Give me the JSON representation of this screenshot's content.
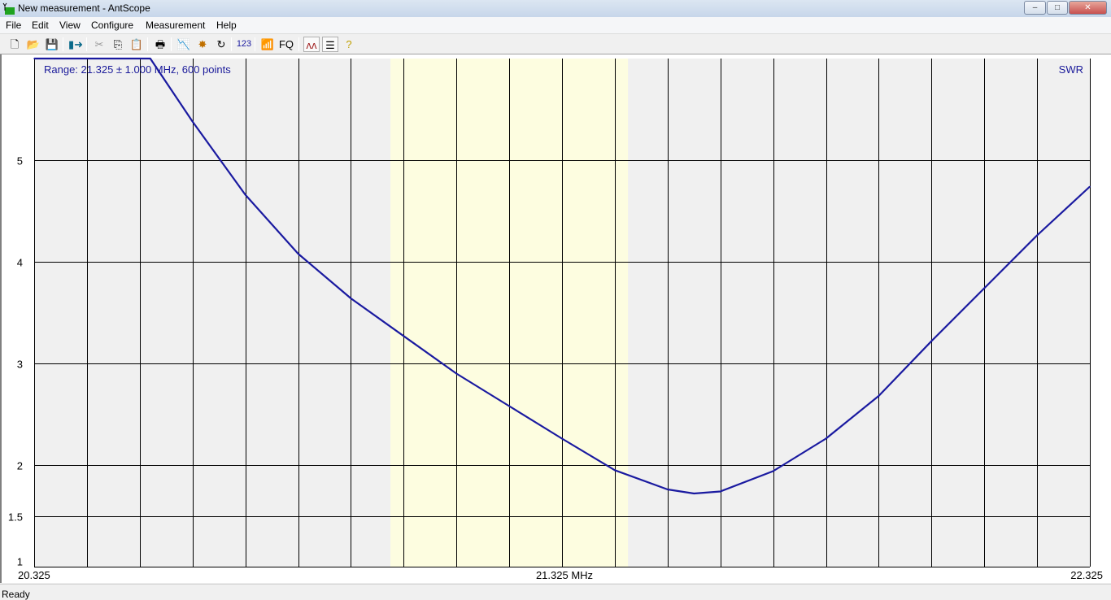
{
  "window": {
    "title": "New measurement - AntScope",
    "minimize": "–",
    "maximize": "□",
    "close": "✕",
    "close_color": "#c75050"
  },
  "menu": [
    {
      "label": "File"
    },
    {
      "label": "Edit"
    },
    {
      "label": "View"
    },
    {
      "label": "Configure"
    },
    {
      "label": "Measurement"
    },
    {
      "label": "Help"
    }
  ],
  "toolbar": [
    {
      "icon": "new-file-icon",
      "glyph": "🗋"
    },
    {
      "icon": "open-folder-icon",
      "glyph": "📂"
    },
    {
      "icon": "save-icon",
      "glyph": "💾"
    },
    {
      "icon": "export-icon",
      "glyph": "▮➜"
    },
    {
      "icon": "cut-icon",
      "glyph": "✂"
    },
    {
      "icon": "copy-icon",
      "glyph": "⎘"
    },
    {
      "icon": "paste-icon",
      "glyph": "📋"
    },
    {
      "icon": "print-icon",
      "glyph": "🖶"
    },
    {
      "icon": "chart-icon",
      "glyph": "📉"
    },
    {
      "icon": "burst-icon",
      "glyph": "✸"
    },
    {
      "icon": "refresh-icon",
      "glyph": "↻"
    },
    {
      "icon": "numbers-icon",
      "glyph": "123"
    },
    {
      "icon": "antenna-icon",
      "glyph": "📶"
    },
    {
      "icon": "fq-icon",
      "glyph": "FQ"
    },
    {
      "icon": "curves-icon",
      "glyph": "ʌʌ"
    },
    {
      "icon": "list-icon",
      "glyph": "☰"
    },
    {
      "icon": "help-icon",
      "glyph": "?"
    }
  ],
  "status": "Ready",
  "chart_data": {
    "type": "line",
    "title": "Range: 21.325 ± 1.000 MHz, 600 points",
    "series_label": "SWR",
    "x_ticks": [
      "20.325",
      "21.325 MHz",
      "22.325"
    ],
    "xlim": [
      20.325,
      22.325
    ],
    "ylim": [
      1,
      6
    ],
    "y_ticks": [
      1,
      1.5,
      2,
      3,
      4,
      5
    ],
    "x_grid_step": 0.1,
    "grid": true,
    "band_highlight": [
      21.0,
      21.45
    ],
    "colors": {
      "line": "#1a1aa0",
      "band": "#fdfde0",
      "plot_bg": "#f0f0f0",
      "grid": "#000000",
      "label": "#1a1a9a"
    },
    "series": [
      {
        "x": [
          20.325,
          20.545,
          20.625,
          20.725,
          20.825,
          20.925,
          21.025,
          21.125,
          21.225,
          21.325,
          21.425,
          21.525,
          21.575,
          21.625,
          21.725,
          21.825,
          21.925,
          22.025,
          22.125,
          22.225,
          22.325
        ],
        "y": [
          6,
          6,
          5.38,
          4.66,
          4.08,
          3.64,
          3.27,
          2.9,
          2.58,
          2.26,
          1.95,
          1.76,
          1.72,
          1.74,
          1.94,
          2.26,
          2.68,
          3.22,
          3.74,
          4.26,
          4.74
        ]
      }
    ]
  }
}
